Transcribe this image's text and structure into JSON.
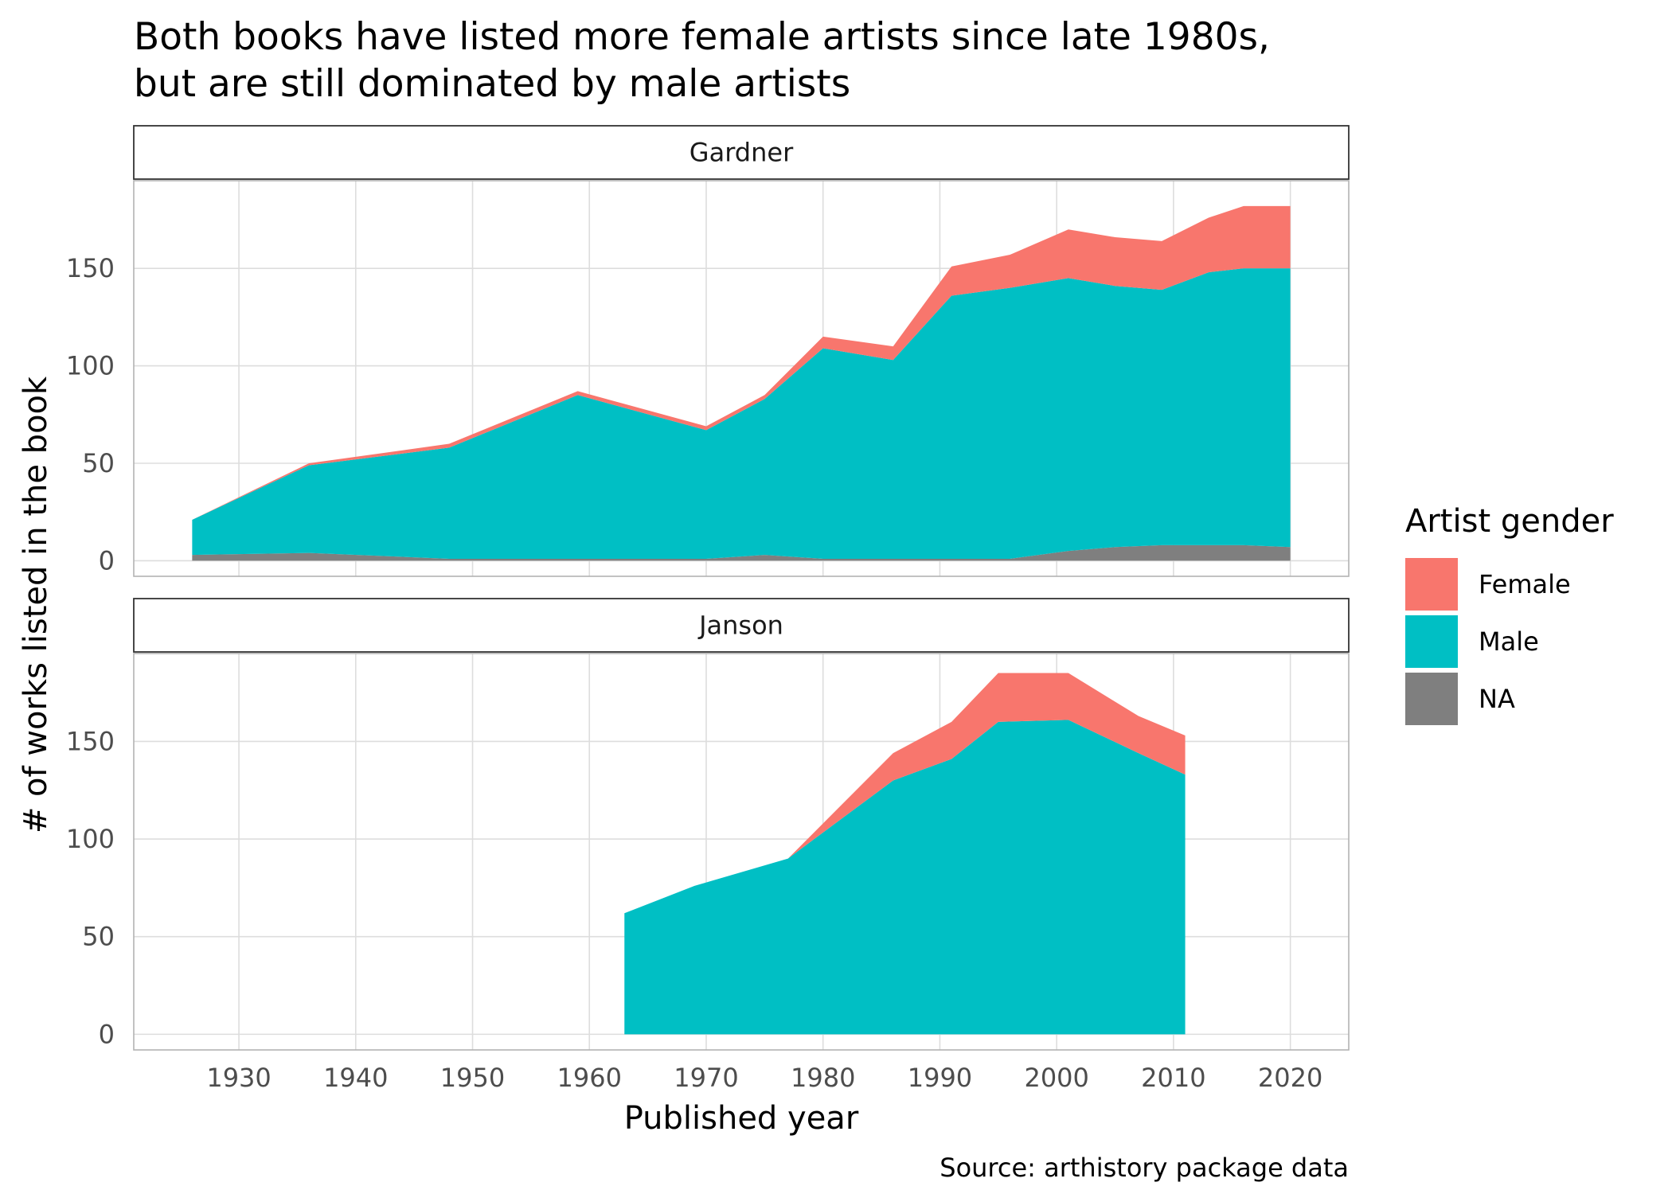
{
  "chart_data": {
    "type": "area",
    "title_lines": [
      "Both books have listed more female artists since late 1980s,",
      "but are still dominated by male artists"
    ],
    "xlabel": "Published year",
    "ylabel": "# of works listed in the book",
    "caption": "Source: arthistory package data",
    "xlim": [
      1921,
      2025
    ],
    "ylim": [
      -8,
      195
    ],
    "x_ticks": [
      1930,
      1940,
      1950,
      1960,
      1970,
      1980,
      1990,
      2000,
      2010,
      2020
    ],
    "y_ticks": [
      0,
      50,
      100,
      150
    ],
    "grid": true,
    "legend": {
      "title": "Artist gender",
      "position": "right",
      "entries": [
        {
          "name": "Female",
          "color": "#f8766d"
        },
        {
          "name": "Male",
          "color": "#00bfc4"
        },
        {
          "name": "NA",
          "color": "#7f7f7f"
        }
      ]
    },
    "panels": [
      {
        "name": "Gardner",
        "x": [
          1926,
          1936,
          1948,
          1959,
          1970,
          1975,
          1980,
          1986,
          1991,
          1996,
          2001,
          2005,
          2009,
          2013,
          2016,
          2020
        ],
        "series": [
          {
            "name": "NA",
            "values": [
              3,
              4,
              1,
              1,
              1,
              3,
              1,
              1,
              1,
              1,
              5,
              7,
              8,
              8,
              8,
              7
            ]
          },
          {
            "name": "Male",
            "values": [
              18,
              45,
              57,
              84,
              66,
              80,
              108,
              102,
              135,
              139,
              140,
              134,
              131,
              140,
              142,
              143
            ]
          },
          {
            "name": "Female",
            "values": [
              0,
              1,
              2,
              2,
              2,
              2,
              6,
              7,
              15,
              17,
              25,
              25,
              25,
              28,
              32,
              32
            ]
          }
        ]
      },
      {
        "name": "Janson",
        "x": [
          1963,
          1969,
          1977,
          1986,
          1991,
          1995,
          2001,
          2007,
          2011
        ],
        "series": [
          {
            "name": "NA",
            "values": [
              0,
              0,
              0,
              0,
              0,
              0,
              0,
              0,
              0
            ]
          },
          {
            "name": "Male",
            "values": [
              62,
              76,
              90,
              130,
              141,
              160,
              161,
              144,
              133
            ]
          },
          {
            "name": "Female",
            "values": [
              0,
              0,
              0,
              14,
              19,
              25,
              24,
              19,
              20
            ]
          }
        ]
      }
    ]
  }
}
